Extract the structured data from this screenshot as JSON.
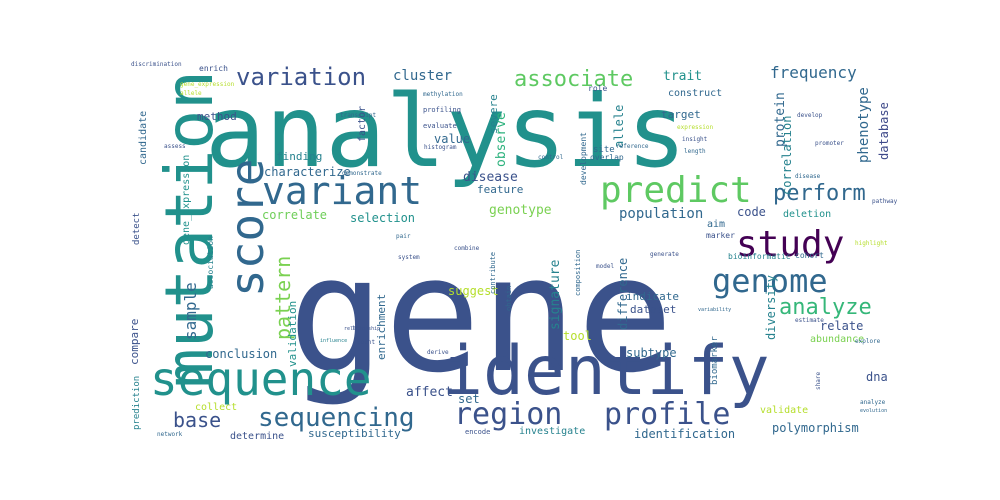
{
  "words": [
    {
      "text": "gene",
      "color": "#3b528b"
    },
    {
      "text": "analysis",
      "color": "#21918c"
    },
    {
      "text": "identify",
      "color": "#3b528b"
    },
    {
      "text": "mutation",
      "color": "#21918c"
    },
    {
      "text": "sequence",
      "color": "#21918c"
    },
    {
      "text": "score",
      "color": "#31688e"
    },
    {
      "text": "predict",
      "color": "#5ec962"
    },
    {
      "text": "variant",
      "color": "#31688e"
    },
    {
      "text": "study",
      "color": "#440154"
    },
    {
      "text": "genome",
      "color": "#31688e"
    },
    {
      "text": "region",
      "color": "#3b528b"
    },
    {
      "text": "profile",
      "color": "#3b528b"
    },
    {
      "text": "sequencing",
      "color": "#31688e"
    },
    {
      "text": "variation",
      "color": "#3b528b"
    },
    {
      "text": "associate",
      "color": "#5ec962"
    },
    {
      "text": "perform",
      "color": "#31688e"
    },
    {
      "text": "analyze",
      "color": "#35b779"
    },
    {
      "text": "pattern",
      "color": "#7ad151"
    },
    {
      "text": "sample",
      "color": "#31688e"
    },
    {
      "text": "frequency",
      "color": "#31688e"
    },
    {
      "text": "base",
      "color": "#3b528b"
    },
    {
      "text": "cluster",
      "color": "#31688e"
    },
    {
      "text": "phenotype",
      "color": "#31688e"
    },
    {
      "text": "correlation",
      "color": "#26828e"
    },
    {
      "text": "database",
      "color": "#3e4989"
    },
    {
      "text": "protein",
      "color": "#31688e"
    },
    {
      "text": "trait",
      "color": "#21918c"
    },
    {
      "text": "construct",
      "color": "#31688e"
    },
    {
      "text": "target",
      "color": "#31688e"
    },
    {
      "text": "allele",
      "color": "#26828e"
    },
    {
      "text": "code",
      "color": "#3b528b"
    },
    {
      "text": "deletion",
      "color": "#21918c"
    },
    {
      "text": "genotype",
      "color": "#7ad151"
    },
    {
      "text": "population",
      "color": "#31688e"
    },
    {
      "text": "selection",
      "color": "#21918c"
    },
    {
      "text": "correlate",
      "color": "#6ece58"
    },
    {
      "text": "feature",
      "color": "#31688e"
    },
    {
      "text": "disease",
      "color": "#3b528b"
    },
    {
      "text": "characterize",
      "color": "#31688e"
    },
    {
      "text": "finding",
      "color": "#26828e"
    },
    {
      "text": "value",
      "color": "#31688e"
    },
    {
      "text": "observe",
      "color": "#2db27d"
    },
    {
      "text": "severe",
      "color": "#26828e"
    },
    {
      "text": "aim",
      "color": "#31688e"
    },
    {
      "text": "difference",
      "color": "#31688e"
    },
    {
      "text": "signature",
      "color": "#26828e"
    },
    {
      "text": "suggest",
      "color": "#b5de2b"
    },
    {
      "text": "enrichment",
      "color": "#31688e"
    },
    {
      "text": "compare",
      "color": "#3b528b"
    },
    {
      "text": "conclusion",
      "color": "#31688e"
    },
    {
      "text": "validation",
      "color": "#21918c"
    },
    {
      "text": "tool",
      "color": "#b5de2b"
    },
    {
      "text": "subtype",
      "color": "#31688e"
    },
    {
      "text": "indicate",
      "color": "#31688e"
    },
    {
      "text": "dataset",
      "color": "#3b528b"
    },
    {
      "text": "diversity",
      "color": "#26828e"
    },
    {
      "text": "relate",
      "color": "#3b528b"
    },
    {
      "text": "abundance",
      "color": "#7ad151"
    },
    {
      "text": "dna",
      "color": "#3b528b"
    },
    {
      "text": "validate",
      "color": "#b5de2b"
    },
    {
      "text": "polymorphism",
      "color": "#31688e"
    },
    {
      "text": "identification",
      "color": "#31688e"
    },
    {
      "text": "investigate",
      "color": "#26828e"
    },
    {
      "text": "susceptibility",
      "color": "#31688e"
    },
    {
      "text": "determine",
      "color": "#3b528b"
    },
    {
      "text": "collect",
      "color": "#b5de2b"
    },
    {
      "text": "affect",
      "color": "#3b528b"
    },
    {
      "text": "set",
      "color": "#31688e"
    },
    {
      "text": "method",
      "color": "#3b528b"
    },
    {
      "text": "factor",
      "color": "#3b528b"
    },
    {
      "text": "candidate",
      "color": "#31688e"
    },
    {
      "text": "gene_expression",
      "color": "#21918c"
    },
    {
      "text": "prediction",
      "color": "#26828e"
    },
    {
      "text": "detect",
      "color": "#3b528b"
    },
    {
      "text": "association",
      "color": "#26828e"
    },
    {
      "text": "biomarker",
      "color": "#31688e"
    },
    {
      "text": "marker",
      "color": "#3b528b"
    },
    {
      "text": "bioinformatic",
      "color": "#26828e"
    },
    {
      "text": "cohort",
      "color": "#31688e"
    },
    {
      "text": "development",
      "color": "#31688e"
    },
    {
      "text": "site",
      "color": "#31688e"
    },
    {
      "text": "overlap",
      "color": "#31688e"
    },
    {
      "text": "role",
      "color": "#3b528b"
    },
    {
      "text": "profiling",
      "color": "#3b528b"
    },
    {
      "text": "evaluate",
      "color": "#3b528b"
    },
    {
      "text": "methylation",
      "color": "#31688e"
    },
    {
      "text": "enrich",
      "color": "#3b528b"
    },
    {
      "text": "discrimination",
      "color": "#3b528b"
    },
    {
      "text": "gene_expression",
      "color": "#b5de2b"
    },
    {
      "text": "insight",
      "color": "#3b528b"
    },
    {
      "text": "length",
      "color": "#31688e"
    },
    {
      "text": "reference",
      "color": "#31688e"
    },
    {
      "text": "expression",
      "color": "#b5de2b"
    },
    {
      "text": "transcript",
      "color": "#31688e"
    },
    {
      "text": "histogram",
      "color": "#3b528b"
    },
    {
      "text": "control",
      "color": "#31688e"
    },
    {
      "text": "demonstrate",
      "color": "#31688e"
    },
    {
      "text": "contribute",
      "color": "#31688e"
    },
    {
      "text": "composition",
      "color": "#31688e"
    },
    {
      "text": "obtain",
      "color": "#31688e"
    },
    {
      "text": "encode",
      "color": "#3b528b"
    },
    {
      "text": "generate",
      "color": "#3b528b"
    },
    {
      "text": "develop",
      "color": "#3b528b"
    },
    {
      "text": "promoter",
      "color": "#3b528b"
    },
    {
      "text": "pathway",
      "color": "#3b528b"
    },
    {
      "text": "explore",
      "color": "#31688e"
    },
    {
      "text": "analyze",
      "color": "#31688e"
    },
    {
      "text": "evolution",
      "color": "#31688e"
    },
    {
      "text": "network",
      "color": "#31688e"
    },
    {
      "text": "relationship",
      "color": "#3b528b"
    },
    {
      "text": "derive",
      "color": "#3b528b"
    },
    {
      "text": "variability",
      "color": "#31688e"
    },
    {
      "text": "share",
      "color": "#3b528b"
    },
    {
      "text": "disease",
      "color": "#31688e"
    },
    {
      "text": "influence",
      "color": "#26828e"
    },
    {
      "text": "point",
      "color": "#3b528b"
    },
    {
      "text": "test",
      "color": "#3b528b"
    },
    {
      "text": "system",
      "color": "#3b528b"
    },
    {
      "text": "combine",
      "color": "#3b528b"
    },
    {
      "text": "model",
      "color": "#3b528b"
    },
    {
      "text": "highlight",
      "color": "#b5de2b"
    },
    {
      "text": "allele",
      "color": "#b5de2b"
    },
    {
      "text": "pair",
      "color": "#31688e"
    },
    {
      "text": "assess",
      "color": "#3b528b"
    },
    {
      "text": "estimate",
      "color": "#3b528b"
    }
  ]
}
